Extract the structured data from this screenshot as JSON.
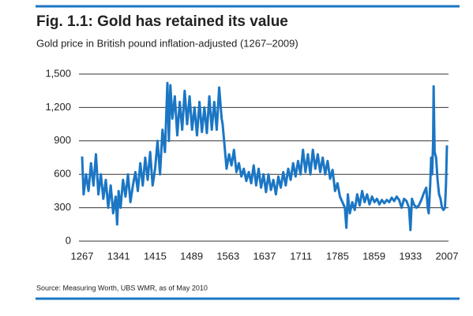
{
  "chart_data": {
    "type": "line",
    "title": "Fig. 1.1: Gold has retained its value",
    "subtitle": "Gold price in British pound inflation-adjusted (1267–2009)",
    "source": "Source:  Measuring Worth, UBS WMR, as of May 2010",
    "x": [
      1267,
      1270,
      1275,
      1280,
      1285,
      1290,
      1295,
      1300,
      1305,
      1310,
      1315,
      1320,
      1325,
      1330,
      1335,
      1338,
      1341,
      1345,
      1350,
      1355,
      1360,
      1365,
      1370,
      1375,
      1380,
      1385,
      1390,
      1395,
      1400,
      1405,
      1410,
      1415,
      1420,
      1425,
      1430,
      1435,
      1440,
      1443,
      1446,
      1450,
      1455,
      1460,
      1465,
      1470,
      1475,
      1480,
      1485,
      1490,
      1495,
      1500,
      1505,
      1510,
      1515,
      1520,
      1525,
      1530,
      1535,
      1540,
      1545,
      1550,
      1552,
      1555,
      1560,
      1565,
      1570,
      1575,
      1580,
      1585,
      1590,
      1595,
      1600,
      1605,
      1610,
      1615,
      1620,
      1625,
      1630,
      1635,
      1640,
      1645,
      1650,
      1655,
      1660,
      1665,
      1670,
      1675,
      1680,
      1685,
      1690,
      1695,
      1700,
      1705,
      1710,
      1715,
      1720,
      1725,
      1730,
      1735,
      1740,
      1745,
      1750,
      1755,
      1760,
      1765,
      1770,
      1775,
      1780,
      1785,
      1790,
      1795,
      1800,
      1803,
      1806,
      1810,
      1815,
      1820,
      1825,
      1830,
      1835,
      1840,
      1845,
      1850,
      1855,
      1860,
      1865,
      1870,
      1875,
      1880,
      1885,
      1890,
      1895,
      1900,
      1905,
      1910,
      1915,
      1920,
      1925,
      1930,
      1933,
      1936,
      1940,
      1945,
      1950,
      1955,
      1960,
      1965,
      1968,
      1970,
      1973,
      1975,
      1977,
      1979,
      1980,
      1982,
      1985,
      1988,
      1991,
      1994,
      1997,
      2000,
      2003,
      2005,
      2007
    ],
    "series": [
      {
        "name": "Gold price",
        "color": "#1b76c4",
        "values": [
          760,
          420,
          600,
          450,
          700,
          500,
          780,
          420,
          600,
          380,
          550,
          300,
          500,
          250,
          400,
          150,
          450,
          300,
          550,
          400,
          600,
          350,
          500,
          620,
          450,
          700,
          500,
          750,
          550,
          800,
          500,
          650,
          900,
          600,
          1000,
          800,
          1420,
          900,
          1400,
          1100,
          1300,
          950,
          1250,
          1000,
          1350,
          1050,
          1300,
          1000,
          1200,
          950,
          1250,
          980,
          1200,
          970,
          1300,
          1000,
          1250,
          1000,
          1380,
          1100,
          1050,
          900,
          650,
          780,
          680,
          820,
          620,
          700,
          580,
          650,
          540,
          620,
          520,
          680,
          500,
          650,
          480,
          600,
          440,
          600,
          460,
          550,
          420,
          580,
          480,
          620,
          500,
          650,
          550,
          700,
          580,
          720,
          600,
          820,
          620,
          780,
          600,
          820,
          650,
          780,
          620,
          750,
          600,
          720,
          560,
          640,
          450,
          520,
          400,
          350,
          300,
          120,
          420,
          250,
          350,
          280,
          420,
          320,
          450,
          350,
          420,
          330,
          400,
          350,
          380,
          330,
          370,
          340,
          370,
          350,
          390,
          360,
          400,
          370,
          300,
          380,
          360,
          300,
          100,
          380,
          330,
          300,
          320,
          370,
          430,
          480,
          300,
          250,
          500,
          750,
          600,
          900,
          1390,
          800,
          750,
          550,
          420,
          380,
          300,
          280,
          300,
          500,
          860
        ]
      }
    ],
    "xlim": [
      1267,
      2007
    ],
    "xticks": [
      1267,
      1341,
      1415,
      1489,
      1563,
      1637,
      1711,
      1785,
      1859,
      1933,
      2007
    ],
    "ylim": [
      0,
      1500
    ],
    "yticks": [
      0,
      300,
      600,
      900,
      {
        "value": 1200,
        "label": "1,200"
      },
      {
        "value": 1500,
        "label": "1,500"
      }
    ],
    "grid": true
  }
}
